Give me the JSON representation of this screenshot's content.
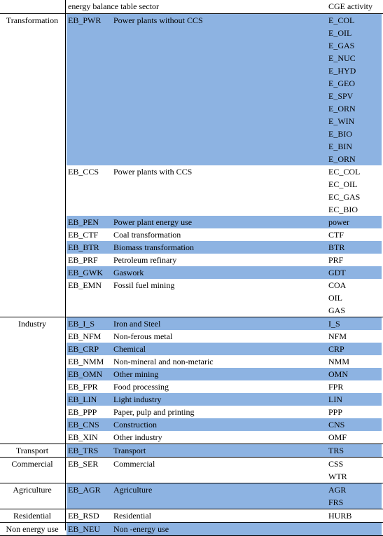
{
  "header": {
    "col1": "",
    "col2": "energy balance table sector",
    "col3": "CGE activity"
  },
  "groups": [
    {
      "category": "Transformation",
      "rows": [
        {
          "code": "EB_PWR",
          "name": "Power plants without CCS",
          "activities": [
            "E_COL",
            "E_OIL",
            "E_GAS",
            "E_NUC",
            "E_HYD",
            "E_GEO",
            "E_SPV",
            "E_ORN",
            "E_WIN",
            "E_BIO",
            "E_BIN",
            "E_ORN"
          ],
          "shaded": true
        },
        {
          "code": "EB_CCS",
          "name": "Power plants with CCS",
          "activities": [
            "EC_COL",
            "EC_OIL",
            "EC_GAS",
            "EC_BIO"
          ],
          "shaded": false
        },
        {
          "code": "EB_PEN",
          "name": "Power plant energy use",
          "activities": [
            "power"
          ],
          "shaded": true
        },
        {
          "code": "EB_CTF",
          "name": "Coal transformation",
          "activities": [
            "CTF"
          ],
          "shaded": false
        },
        {
          "code": "EB_BTR",
          "name": "Biomass transformation",
          "activities": [
            "BTR"
          ],
          "shaded": true
        },
        {
          "code": "EB_PRF",
          "name": "Petroleum refinary",
          "activities": [
            "PRF"
          ],
          "shaded": false
        },
        {
          "code": "EB_GWK",
          "name": "Gaswork",
          "activities": [
            "GDT"
          ],
          "shaded": true
        },
        {
          "code": "EB_EMN",
          "name": "Fossil fuel mining",
          "activities": [
            "COA",
            "OIL",
            "GAS"
          ],
          "shaded": false
        }
      ]
    },
    {
      "category": "Industry",
      "rows": [
        {
          "code": "EB_I_S",
          "name": "Iron and Steel",
          "activities": [
            "I_S"
          ],
          "shaded": true
        },
        {
          "code": "EB_NFM",
          "name": "Non-ferous metal",
          "activities": [
            "NFM"
          ],
          "shaded": false
        },
        {
          "code": "EB_CRP",
          "name": "Chemical",
          "activities": [
            "CRP"
          ],
          "shaded": true
        },
        {
          "code": "EB_NMM",
          "name": "Non-mineral and non-metaric",
          "activities": [
            "NMM"
          ],
          "shaded": false
        },
        {
          "code": "EB_OMN",
          "name": "Other mining",
          "activities": [
            "OMN"
          ],
          "shaded": true
        },
        {
          "code": "EB_FPR",
          "name": "Food processing",
          "activities": [
            "FPR"
          ],
          "shaded": false
        },
        {
          "code": "EB_LIN",
          "name": "Light industry",
          "activities": [
            "LIN"
          ],
          "shaded": true
        },
        {
          "code": "EB_PPP",
          "name": "Paper, pulp and printing",
          "activities": [
            "PPP"
          ],
          "shaded": false
        },
        {
          "code": "EB_CNS",
          "name": "Construction",
          "activities": [
            "CNS"
          ],
          "shaded": true
        },
        {
          "code": "EB_XIN",
          "name": "Other industry",
          "activities": [
            "OMF"
          ],
          "shaded": false
        }
      ]
    },
    {
      "category": "Transport",
      "rows": [
        {
          "code": "EB_TRS",
          "name": "Transport",
          "activities": [
            "TRS"
          ],
          "shaded": true
        }
      ]
    },
    {
      "category": "Commercial",
      "rows": [
        {
          "code": "EB_SER",
          "name": "Commercial",
          "activities": [
            "CSS",
            "WTR"
          ],
          "shaded": false
        }
      ]
    },
    {
      "category": "Agriculture",
      "rows": [
        {
          "code": "EB_AGR",
          "name": "Agriculture",
          "activities": [
            "AGR",
            "FRS"
          ],
          "shaded": true
        }
      ]
    },
    {
      "category": "Residential",
      "rows": [
        {
          "code": "EB_RSD",
          "name": "Residential",
          "activities": [
            "HURB"
          ],
          "shaded": false
        }
      ]
    },
    {
      "category": "Non energy use",
      "rows": [
        {
          "code": "EB_NEU",
          "name": "Non -energy use",
          "activities": [
            ""
          ],
          "shaded": true
        }
      ]
    }
  ],
  "colors": {
    "band": "#8db3e2",
    "rule": "#000000"
  }
}
